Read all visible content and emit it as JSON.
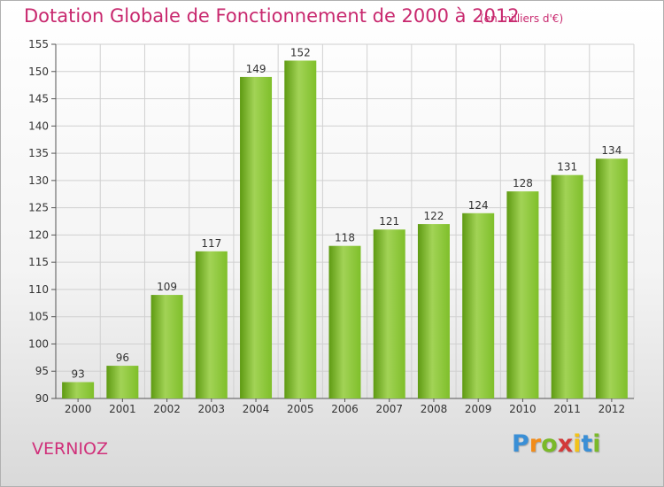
{
  "chart_data": {
    "type": "bar",
    "title": "Dotation Globale de Fonctionnement de 2000 à 2012",
    "subtitle": "(en milliers d'€)",
    "categories": [
      "2000",
      "2001",
      "2002",
      "2003",
      "2004",
      "2005",
      "2006",
      "2007",
      "2008",
      "2009",
      "2010",
      "2011",
      "2012"
    ],
    "values": [
      93,
      96,
      109,
      117,
      149,
      152,
      118,
      121,
      122,
      124,
      128,
      131,
      134
    ],
    "ylim": [
      90,
      155
    ],
    "yticks": [
      "90",
      "95",
      "100",
      "105",
      "110",
      "115",
      "120",
      "125",
      "130",
      "135",
      "140",
      "145",
      "150",
      "155"
    ],
    "grid": true,
    "bar_color": "#7fbf2a",
    "bar_color_light": "#a2d356",
    "bar_color_dark": "#5e9a12"
  },
  "commune": "VERNIOZ",
  "logo": {
    "letters": [
      "P",
      "r",
      "o",
      "x",
      "i",
      "t",
      "i"
    ],
    "colors": [
      "#3a8fd6",
      "#f28c1a",
      "#7ab929",
      "#d23a3a",
      "#f2c21a",
      "#3a8fd6",
      "#7ab929"
    ]
  },
  "colors": {
    "title": "#c8286e",
    "grid": "#d0d0d0"
  }
}
